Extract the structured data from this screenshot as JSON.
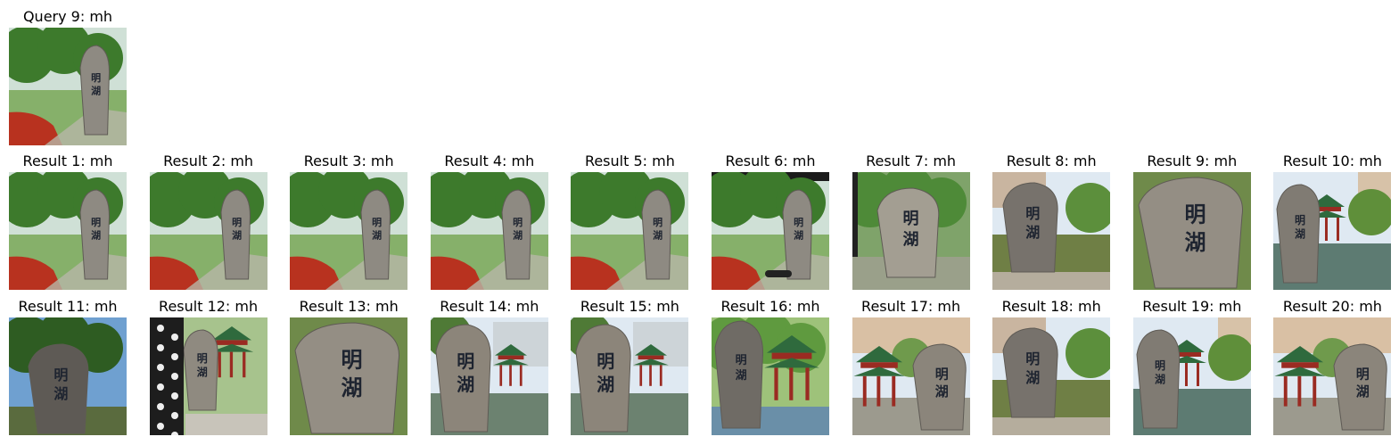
{
  "query": {
    "title": "Query 9: mh",
    "variant": "garden-flowers"
  },
  "results": [
    {
      "title": "Result 1: mh",
      "variant": "garden-flowers"
    },
    {
      "title": "Result 2: mh",
      "variant": "garden-flowers"
    },
    {
      "title": "Result 3: mh",
      "variant": "garden-flowers"
    },
    {
      "title": "Result 4: mh",
      "variant": "garden-flowers"
    },
    {
      "title": "Result 5: mh",
      "variant": "garden-flowers"
    },
    {
      "title": "Result 6: mh",
      "variant": "garden-flowers-dark"
    },
    {
      "title": "Result 7: mh",
      "variant": "stone-center"
    },
    {
      "title": "Result 8: mh",
      "variant": "stone-pond"
    },
    {
      "title": "Result 9: mh",
      "variant": "stone-close"
    },
    {
      "title": "Result 10: mh",
      "variant": "stone-pavilion-water"
    },
    {
      "title": "Result 11: mh",
      "variant": "stone-trees"
    },
    {
      "title": "Result 12: mh",
      "variant": "pole-pavilion"
    },
    {
      "title": "Result 13: mh",
      "variant": "stone-close"
    },
    {
      "title": "Result 14: mh",
      "variant": "stone-angle-pavilion"
    },
    {
      "title": "Result 15: mh",
      "variant": "stone-angle-pavilion"
    },
    {
      "title": "Result 16: mh",
      "variant": "stone-left-pavilion"
    },
    {
      "title": "Result 17: mh",
      "variant": "pavilion-stone-right"
    },
    {
      "title": "Result 18: mh",
      "variant": "stone-pond"
    },
    {
      "title": "Result 19: mh",
      "variant": "stone-pavilion-water"
    },
    {
      "title": "Result 20: mh",
      "variant": "pavilion-stone-right"
    }
  ],
  "stone_glyphs": [
    "明",
    "湖"
  ],
  "colors": {
    "sky": "#dfe9f2",
    "foliage": "#3f7a2e",
    "stone": "#8e8a82",
    "flowers": "#b8321f",
    "pavilion": "#9a2b22"
  }
}
